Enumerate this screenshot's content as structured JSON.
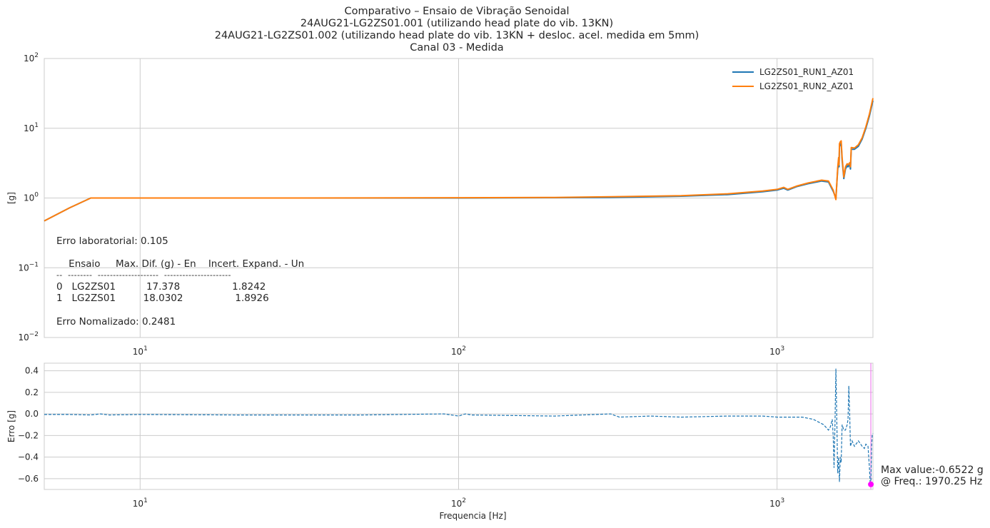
{
  "title_lines": [
    "Comparativo – Ensaio de Vibração Senoidal",
    "24AUG21-LG2ZS01.001 (utilizando head plate do vib. 13KN)",
    "24AUG21-LG2ZS01.002 (utilizando head plate do vib. 13KN + desloc. acel. medida em 5mm)",
    "Canal 03 - Medida"
  ],
  "annotation": {
    "erro_lab": "Erro laboratorial: 0.105",
    "table_header": "    Ensaio     Max. Dif. (g) - En    Incert. Expand. - Un",
    "table_rule": "--  --------  --------------------  ----------------------",
    "table_row0": "0   LG2ZS01          17.378                 1.8242",
    "table_row1": "1   LG2ZS01         18.0302                 1.8926",
    "erro_norm": "Erro Nomalizado: 0.2481"
  },
  "max_annotation": {
    "line1": "Max value:-0.6522 g",
    "line2": "@ Freq.: 1970.25 Hz",
    "marker_color": "#ff00ff"
  },
  "colors": {
    "run1": "#1f77b4",
    "run2": "#ff7f0e",
    "grid": "#cccccc",
    "axes_edge": "#cccccc",
    "vline": "#ee82ee"
  },
  "chart_data": [
    {
      "type": "line",
      "xscale": "log",
      "yscale": "log",
      "xlim": [
        5,
        2000
      ],
      "ylim": [
        0.01,
        100
      ],
      "xlabel": "",
      "ylabel": "[g]",
      "x_ticks": [
        {
          "value": 10,
          "base": "10",
          "exp": "1"
        },
        {
          "value": 100,
          "base": "10",
          "exp": "2"
        },
        {
          "value": 1000,
          "base": "10",
          "exp": "3"
        }
      ],
      "y_ticks": [
        {
          "value": 0.01,
          "base": "10",
          "exp": "−2"
        },
        {
          "value": 0.1,
          "base": "10",
          "exp": "−1"
        },
        {
          "value": 1,
          "base": "10",
          "exp": "0"
        },
        {
          "value": 10,
          "base": "10",
          "exp": "1"
        },
        {
          "value": 100,
          "base": "10",
          "exp": "2"
        }
      ],
      "legend": "top-right",
      "grid": true,
      "series": [
        {
          "name": "LG2ZS01_RUN1_AZ01",
          "x": [
            5,
            6,
            7,
            10,
            30,
            100,
            200,
            300,
            500,
            700,
            900,
            1000,
            1050,
            1080,
            1150,
            1250,
            1380,
            1450,
            1500,
            1530,
            1550,
            1560,
            1565,
            1570,
            1580,
            1590,
            1600,
            1620,
            1640,
            1660,
            1670,
            1690,
            1700,
            1710,
            1750,
            1800,
            1850,
            1900,
            1950,
            2000
          ],
          "y": [
            0.47,
            0.72,
            1.0,
            1.0,
            1.0,
            1.0,
            1.01,
            1.02,
            1.06,
            1.12,
            1.23,
            1.3,
            1.38,
            1.3,
            1.45,
            1.6,
            1.75,
            1.7,
            1.25,
            1.0,
            2.5,
            3.5,
            2.8,
            5.5,
            5.8,
            6.1,
            3.5,
            1.9,
            2.6,
            2.9,
            2.8,
            3.0,
            2.6,
            5.0,
            5.0,
            5.5,
            7.0,
            10.0,
            15.0,
            25.0
          ]
        },
        {
          "name": "LG2ZS01_RUN2_AZ01",
          "x": [
            5,
            6,
            7,
            10,
            30,
            100,
            200,
            300,
            500,
            700,
            900,
            1000,
            1050,
            1080,
            1150,
            1250,
            1380,
            1450,
            1500,
            1530,
            1550,
            1560,
            1565,
            1570,
            1580,
            1590,
            1600,
            1620,
            1640,
            1660,
            1670,
            1690,
            1700,
            1710,
            1750,
            1800,
            1850,
            1900,
            1950,
            2000
          ],
          "y": [
            0.47,
            0.72,
            1.0,
            1.0,
            1.0,
            1.01,
            1.02,
            1.04,
            1.08,
            1.15,
            1.26,
            1.33,
            1.42,
            1.33,
            1.48,
            1.64,
            1.8,
            1.75,
            1.3,
            0.95,
            2.7,
            3.8,
            3.0,
            6.0,
            6.4,
            6.6,
            3.8,
            2.0,
            2.8,
            3.1,
            3.0,
            3.2,
            2.8,
            5.3,
            5.2,
            5.8,
            7.3,
            10.5,
            16.0,
            27.0
          ]
        }
      ]
    },
    {
      "type": "line",
      "xscale": "log",
      "xlim": [
        5,
        2000
      ],
      "ylim": [
        -0.7,
        0.47
      ],
      "xlabel": "Frequencia [Hz]",
      "ylabel": "Erro [g]",
      "x_ticks": [
        {
          "value": 10,
          "base": "10",
          "exp": "1"
        },
        {
          "value": 100,
          "base": "10",
          "exp": "2"
        },
        {
          "value": 1000,
          "base": "10",
          "exp": "3"
        }
      ],
      "y_ticks": [
        "−0.6",
        "−0.4",
        "−0.2",
        "0.0",
        "0.2",
        "0.4"
      ],
      "y_tick_values": [
        -0.6,
        -0.4,
        -0.2,
        0.0,
        0.2,
        0.4
      ],
      "grid": true,
      "series": [
        {
          "x": [
            5,
            6,
            7,
            7.5,
            8,
            10,
            20,
            50,
            90,
            100,
            105,
            110,
            200,
            300,
            320,
            400,
            500,
            700,
            900,
            1000,
            1100,
            1200,
            1300,
            1400,
            1450,
            1470,
            1490,
            1500,
            1510,
            1520,
            1530,
            1545,
            1550,
            1560,
            1570,
            1580,
            1590,
            1600,
            1620,
            1640,
            1660,
            1670,
            1680,
            1690,
            1700,
            1720,
            1750,
            1800,
            1850,
            1880,
            1900,
            1930,
            1950,
            1960,
            1970.25,
            1980,
            1990,
            2000
          ],
          "y": [
            -0.005,
            -0.005,
            -0.01,
            0.0,
            -0.01,
            -0.005,
            -0.01,
            -0.01,
            0.0,
            -0.02,
            0.0,
            -0.01,
            -0.02,
            0.0,
            -0.03,
            -0.02,
            -0.03,
            -0.02,
            -0.02,
            -0.03,
            -0.03,
            -0.03,
            -0.05,
            -0.1,
            -0.15,
            -0.12,
            -0.05,
            -0.2,
            -0.5,
            -0.1,
            0.42,
            -0.3,
            -0.55,
            -0.4,
            -0.63,
            -0.4,
            -0.45,
            -0.1,
            -0.15,
            -0.15,
            -0.1,
            -0.05,
            0.26,
            0.0,
            -0.3,
            -0.25,
            -0.3,
            -0.25,
            -0.3,
            -0.32,
            -0.28,
            -0.3,
            -0.5,
            -0.65,
            -0.6522,
            -0.3,
            -0.2,
            -0.18
          ]
        }
      ],
      "max_point": {
        "x": 1970.25,
        "y": -0.6522
      }
    }
  ]
}
